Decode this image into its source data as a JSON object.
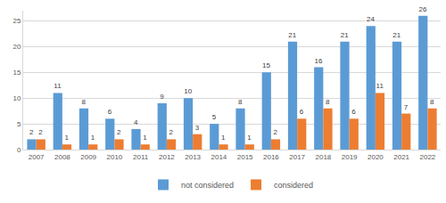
{
  "chart_data": {
    "type": "bar",
    "categories": [
      "2007",
      "2008",
      "2009",
      "2010",
      "2011",
      "2012",
      "2013",
      "2014",
      "2015",
      "2016",
      "2017",
      "2018",
      "2019",
      "2020",
      "2021",
      "2022"
    ],
    "series": [
      {
        "name": "not considered",
        "color": "#5b9bd5",
        "values": [
          2,
          11,
          8,
          6,
          4,
          9,
          10,
          5,
          8,
          15,
          21,
          16,
          21,
          24,
          21,
          26
        ]
      },
      {
        "name": "considered",
        "color": "#ed7d31",
        "values": [
          2,
          1,
          1,
          2,
          1,
          2,
          3,
          1,
          1,
          2,
          6,
          8,
          6,
          11,
          7,
          8
        ]
      }
    ],
    "ylim": [
      0,
      27
    ],
    "yticks": [
      0,
      5,
      10,
      15,
      20,
      25
    ],
    "grid": true,
    "legend": "bottom",
    "data_labels": true
  }
}
